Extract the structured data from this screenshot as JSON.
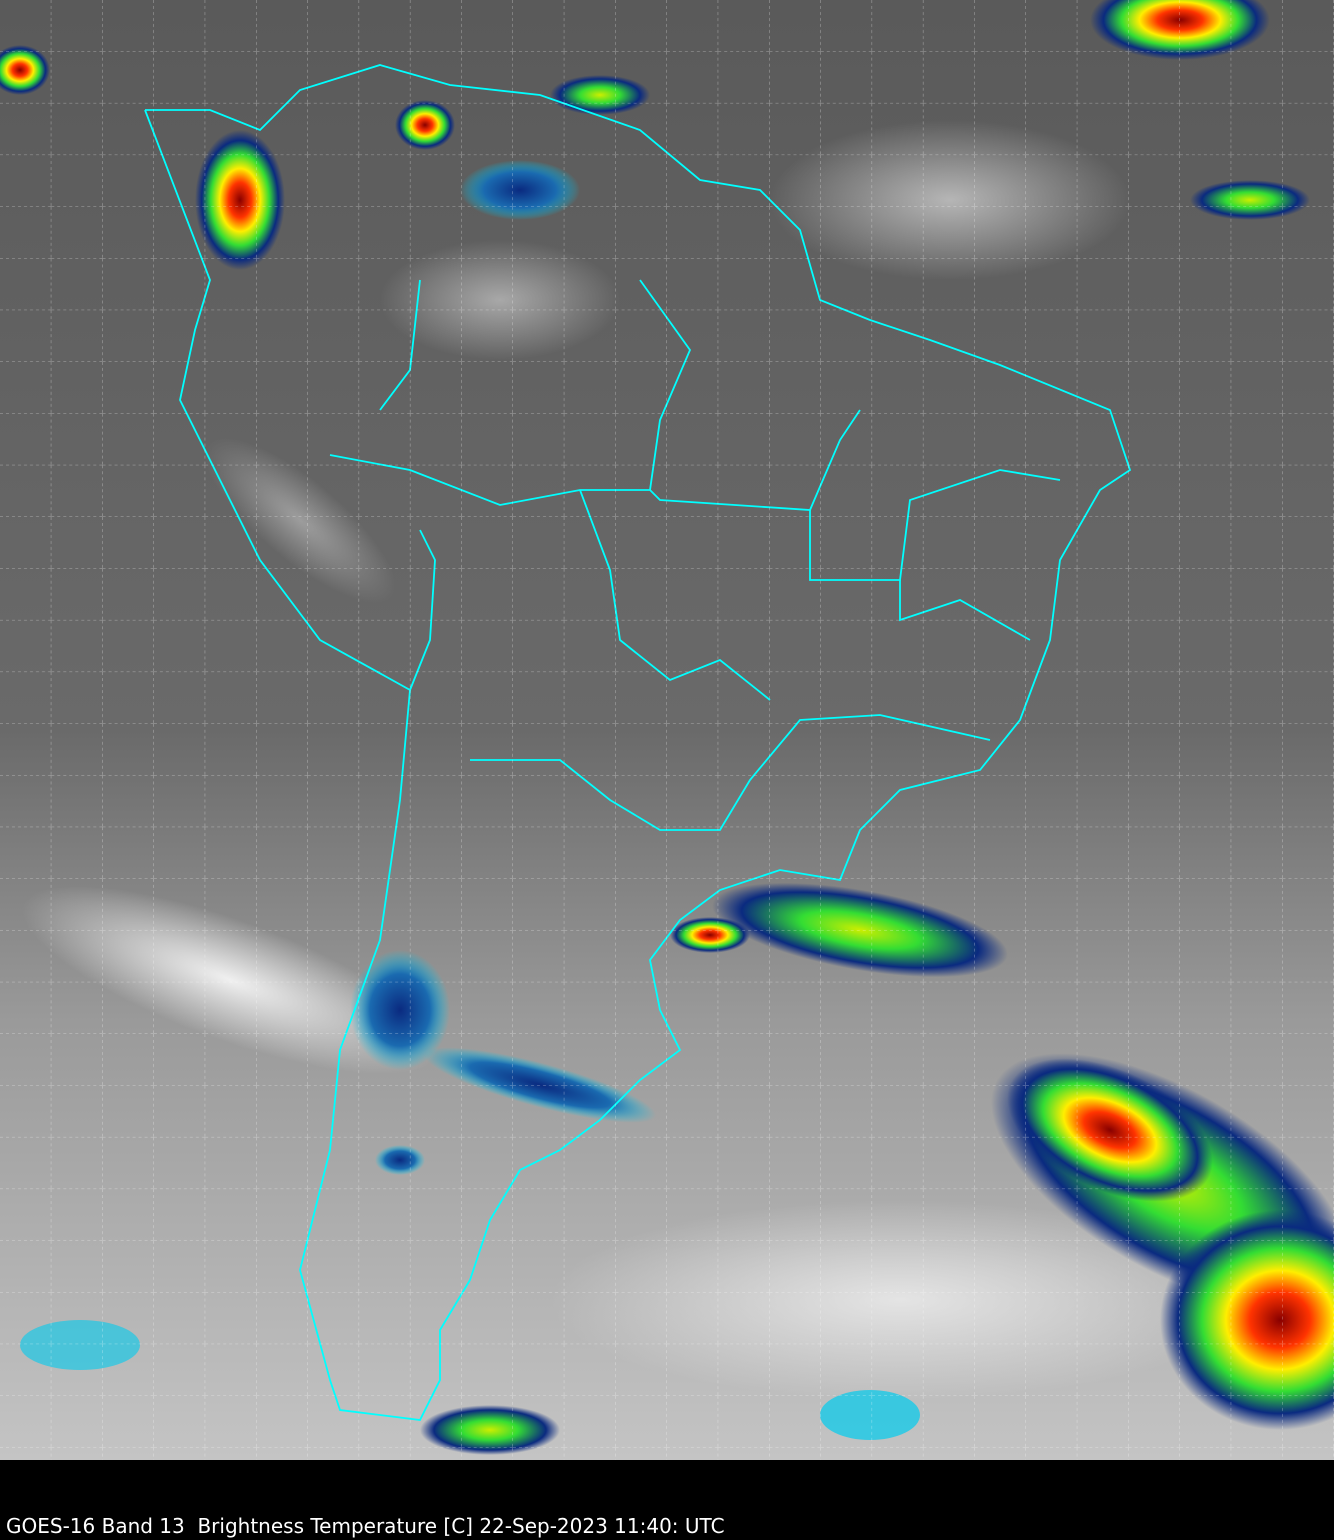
{
  "caption": "GOES-16 Band 13  Brightness Temperature [C] 22-Sep-2023 11:40: UTC",
  "colors": {
    "background": "#000000",
    "boundaries": "#00ffff",
    "gridlines": "#ffffff",
    "land_dark": "#4a4a4a",
    "cloud_light": "#d8d8d8",
    "cold_blue": "#0a2a80",
    "cold_green": "#33dd33",
    "cold_yellow": "#ffee00",
    "cold_red": "#dd1100"
  }
}
